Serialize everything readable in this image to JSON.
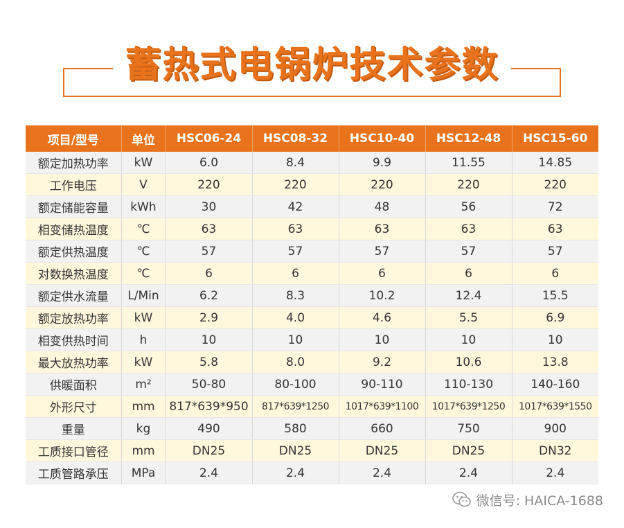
{
  "title": "蓄热式电锅炉技术参数",
  "table": {
    "headers": [
      "项目/型号",
      "单位",
      "HSC06-24",
      "HSC08-32",
      "HSC10-40",
      "HSC12-48",
      "HSC15-60"
    ],
    "rows": [
      [
        "额定加热功率",
        "kW",
        "6.0",
        "8.4",
        "9.9",
        "11.55",
        "14.85"
      ],
      [
        "工作电压",
        "V",
        "220",
        "220",
        "220",
        "220",
        "220"
      ],
      [
        "额定储能容量",
        "kWh",
        "30",
        "42",
        "48",
        "56",
        "72"
      ],
      [
        "相变储热温度",
        "℃",
        "63",
        "63",
        "63",
        "63",
        "63"
      ],
      [
        "额定供热温度",
        "℃",
        "57",
        "57",
        "57",
        "57",
        "57"
      ],
      [
        "对数换热温度",
        "℃",
        "6",
        "6",
        "6",
        "6",
        "6"
      ],
      [
        "额定供水流量",
        "L/Min",
        "6.2",
        "8.3",
        "10.2",
        "12.4",
        "15.5"
      ],
      [
        "额定放热功率",
        "kW",
        "2.9",
        "4.0",
        "4.6",
        "5.5",
        "6.9"
      ],
      [
        "相变供热时间",
        "h",
        "10",
        "10",
        "10",
        "10",
        "10"
      ],
      [
        "最大放热功率",
        "kW",
        "5.8",
        "8.0",
        "9.2",
        "10.6",
        "13.8"
      ],
      [
        "供暖面积",
        "m²",
        "50-80",
        "80-100",
        "90-110",
        "110-130",
        "140-160"
      ],
      [
        "外形尺寸",
        "mm",
        "817*639*950",
        "817*639*1250",
        "1017*639*1100",
        "1017*639*1250",
        "1017*639*1550"
      ],
      [
        "重量",
        "kg",
        "490",
        "580",
        "660",
        "750",
        "900"
      ],
      [
        "工质接口管径",
        "mm",
        "DN25",
        "DN25",
        "DN25",
        "DN25",
        "DN32"
      ],
      [
        "工质管路承压",
        "MPa",
        "2.4",
        "2.4",
        "2.4",
        "2.4",
        "2.4"
      ]
    ]
  },
  "watermark": {
    "icon": "wechat-icon",
    "text": "微信号: HAICA-1688"
  },
  "colors": {
    "accent": "#e8731c",
    "row_odd": "#f2f2f2",
    "row_even": "#fff8dc"
  }
}
